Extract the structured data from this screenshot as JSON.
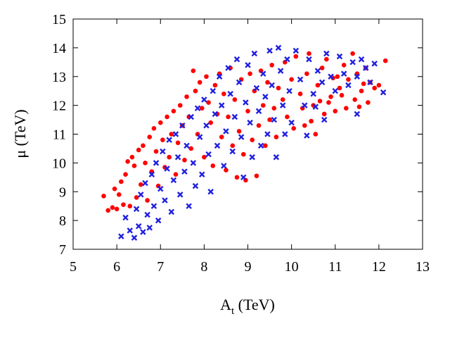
{
  "chart_data": {
    "type": "scatter",
    "title": "",
    "xlabel": {
      "main": "A",
      "sub": "t",
      "unit": " (TeV)"
    },
    "ylabel": "μ (TeV)",
    "xlim": [
      5,
      13
    ],
    "ylim": [
      7,
      15
    ],
    "x_ticks": [
      5,
      6,
      7,
      8,
      9,
      10,
      11,
      12,
      13
    ],
    "y_ticks": [
      7,
      8,
      9,
      10,
      11,
      12,
      13,
      14,
      15
    ],
    "grid": false,
    "legend": "none",
    "series": [
      {
        "marker": "filled-circle",
        "color": "#ff0000",
        "points": [
          [
            5.7,
            8.85
          ],
          [
            5.8,
            8.35
          ],
          [
            5.9,
            8.45
          ],
          [
            5.95,
            9.1
          ],
          [
            6.0,
            8.4
          ],
          [
            6.05,
            8.9
          ],
          [
            6.1,
            9.35
          ],
          [
            6.15,
            8.55
          ],
          [
            6.2,
            9.6
          ],
          [
            6.25,
            10.05
          ],
          [
            6.3,
            8.5
          ],
          [
            6.35,
            10.2
          ],
          [
            6.4,
            9.9
          ],
          [
            6.45,
            8.8
          ],
          [
            6.5,
            10.45
          ],
          [
            6.55,
            9.25
          ],
          [
            6.6,
            10.6
          ],
          [
            6.65,
            10.0
          ],
          [
            6.7,
            8.7
          ],
          [
            6.75,
            10.9
          ],
          [
            6.8,
            9.7
          ],
          [
            6.85,
            11.2
          ],
          [
            6.9,
            10.4
          ],
          [
            6.95,
            9.2
          ],
          [
            7.0,
            11.4
          ],
          [
            7.05,
            10.8
          ],
          [
            7.1,
            9.85
          ],
          [
            7.15,
            11.6
          ],
          [
            7.2,
            10.2
          ],
          [
            7.25,
            11.0
          ],
          [
            7.3,
            11.8
          ],
          [
            7.35,
            9.6
          ],
          [
            7.4,
            10.7
          ],
          [
            7.45,
            12.0
          ],
          [
            7.5,
            11.3
          ],
          [
            7.55,
            10.1
          ],
          [
            7.6,
            12.3
          ],
          [
            7.65,
            11.6
          ],
          [
            7.7,
            10.5
          ],
          [
            7.75,
            13.2
          ],
          [
            7.8,
            12.5
          ],
          [
            7.85,
            11.0
          ],
          [
            7.9,
            12.8
          ],
          [
            7.95,
            11.9
          ],
          [
            8.0,
            10.2
          ],
          [
            8.05,
            13.0
          ],
          [
            8.1,
            12.1
          ],
          [
            8.15,
            11.4
          ],
          [
            8.2,
            9.9
          ],
          [
            8.25,
            12.7
          ],
          [
            8.3,
            11.7
          ],
          [
            8.35,
            13.1
          ],
          [
            8.4,
            10.9
          ],
          [
            8.45,
            12.4
          ],
          [
            8.5,
            9.75
          ],
          [
            8.55,
            11.6
          ],
          [
            8.6,
            13.3
          ],
          [
            8.65,
            10.6
          ],
          [
            8.7,
            12.2
          ],
          [
            8.75,
            9.5
          ],
          [
            8.8,
            11.1
          ],
          [
            8.85,
            12.9
          ],
          [
            8.9,
            10.3
          ],
          [
            8.95,
            9.4
          ],
          [
            9.0,
            11.8
          ],
          [
            9.05,
            13.1
          ],
          [
            9.1,
            10.8
          ],
          [
            9.15,
            12.5
          ],
          [
            9.2,
            9.55
          ],
          [
            9.25,
            11.3
          ],
          [
            9.3,
            13.2
          ],
          [
            9.35,
            12.0
          ],
          [
            9.4,
            10.6
          ],
          [
            9.45,
            12.8
          ],
          [
            9.5,
            11.5
          ],
          [
            9.55,
            13.4
          ],
          [
            9.6,
            11.9
          ],
          [
            9.65,
            10.9
          ],
          [
            9.7,
            12.6
          ],
          [
            9.8,
            12.2
          ],
          [
            9.85,
            13.5
          ],
          [
            9.9,
            11.6
          ],
          [
            10.0,
            12.9
          ],
          [
            10.05,
            11.2
          ],
          [
            10.1,
            13.7
          ],
          [
            10.2,
            12.4
          ],
          [
            10.3,
            11.3
          ],
          [
            10.35,
            13.1
          ],
          [
            10.4,
            13.8
          ],
          [
            10.5,
            12.0
          ],
          [
            10.55,
            11.0
          ],
          [
            10.6,
            12.7
          ],
          [
            10.7,
            13.3
          ],
          [
            10.75,
            11.7
          ],
          [
            10.8,
            13.6
          ],
          [
            10.9,
            12.3
          ],
          [
            11.0,
            11.8
          ],
          [
            11.05,
            13.0
          ],
          [
            11.1,
            12.6
          ],
          [
            11.2,
            13.4
          ],
          [
            11.25,
            11.9
          ],
          [
            11.3,
            12.9
          ],
          [
            11.4,
            13.8
          ],
          [
            11.45,
            12.2
          ],
          [
            11.5,
            13.1
          ],
          [
            11.6,
            12.5
          ],
          [
            11.7,
            13.3
          ],
          [
            11.75,
            12.1
          ],
          [
            11.8,
            12.8
          ],
          [
            11.9,
            12.6
          ],
          [
            12.0,
            12.7
          ],
          [
            12.15,
            13.55
          ],
          [
            10.85,
            12.1
          ],
          [
            10.95,
            12.95
          ],
          [
            11.15,
            12.35
          ],
          [
            11.55,
            11.95
          ],
          [
            11.65,
            12.75
          ],
          [
            10.45,
            11.45
          ],
          [
            10.25,
            11.9
          ],
          [
            10.65,
            12.15
          ]
        ]
      },
      {
        "marker": "cross-x",
        "color": "#2020e0",
        "points": [
          [
            6.1,
            7.45
          ],
          [
            6.2,
            8.1
          ],
          [
            6.3,
            7.65
          ],
          [
            6.4,
            7.4
          ],
          [
            6.45,
            8.4
          ],
          [
            6.5,
            7.8
          ],
          [
            6.55,
            8.9
          ],
          [
            6.6,
            7.6
          ],
          [
            6.65,
            9.3
          ],
          [
            6.7,
            8.2
          ],
          [
            6.75,
            7.75
          ],
          [
            6.8,
            9.6
          ],
          [
            6.85,
            8.5
          ],
          [
            6.9,
            10.0
          ],
          [
            6.95,
            8.0
          ],
          [
            7.0,
            9.1
          ],
          [
            7.05,
            10.4
          ],
          [
            7.1,
            8.7
          ],
          [
            7.15,
            9.8
          ],
          [
            7.2,
            10.8
          ],
          [
            7.25,
            8.3
          ],
          [
            7.3,
            9.4
          ],
          [
            7.35,
            11.0
          ],
          [
            7.4,
            10.2
          ],
          [
            7.45,
            8.9
          ],
          [
            7.5,
            11.3
          ],
          [
            7.55,
            9.7
          ],
          [
            7.6,
            10.6
          ],
          [
            7.65,
            8.5
          ],
          [
            7.7,
            11.6
          ],
          [
            7.75,
            10.0
          ],
          [
            7.8,
            9.2
          ],
          [
            7.85,
            11.9
          ],
          [
            7.9,
            10.9
          ],
          [
            7.95,
            9.6
          ],
          [
            8.0,
            12.2
          ],
          [
            8.05,
            11.3
          ],
          [
            8.1,
            10.3
          ],
          [
            8.15,
            9.0
          ],
          [
            8.2,
            12.5
          ],
          [
            8.25,
            11.7
          ],
          [
            8.3,
            10.6
          ],
          [
            8.35,
            13.0
          ],
          [
            8.4,
            12.0
          ],
          [
            8.45,
            9.9
          ],
          [
            8.5,
            11.1
          ],
          [
            8.55,
            13.3
          ],
          [
            8.6,
            12.4
          ],
          [
            8.65,
            10.4
          ],
          [
            8.7,
            11.6
          ],
          [
            8.75,
            13.6
          ],
          [
            8.8,
            12.8
          ],
          [
            8.85,
            10.9
          ],
          [
            8.9,
            9.5
          ],
          [
            8.95,
            12.1
          ],
          [
            9.0,
            13.4
          ],
          [
            9.05,
            11.4
          ],
          [
            9.1,
            10.2
          ],
          [
            9.15,
            13.8
          ],
          [
            9.2,
            12.6
          ],
          [
            9.25,
            11.8
          ],
          [
            9.3,
            10.6
          ],
          [
            9.35,
            13.1
          ],
          [
            9.4,
            12.3
          ],
          [
            9.45,
            11.0
          ],
          [
            9.5,
            13.9
          ],
          [
            9.55,
            12.7
          ],
          [
            9.6,
            11.5
          ],
          [
            9.65,
            10.2
          ],
          [
            9.7,
            14.0
          ],
          [
            9.75,
            13.2
          ],
          [
            9.8,
            12.0
          ],
          [
            9.85,
            11.0
          ],
          [
            9.9,
            13.6
          ],
          [
            9.95,
            12.5
          ],
          [
            10.0,
            11.4
          ],
          [
            10.1,
            13.9
          ],
          [
            10.2,
            12.9
          ],
          [
            10.3,
            12.0
          ],
          [
            10.4,
            13.6
          ],
          [
            10.5,
            12.4
          ],
          [
            10.6,
            13.2
          ],
          [
            10.7,
            12.8
          ],
          [
            10.8,
            13.8
          ],
          [
            10.9,
            13.0
          ],
          [
            11.0,
            12.5
          ],
          [
            11.1,
            13.7
          ],
          [
            11.2,
            13.1
          ],
          [
            11.3,
            12.7
          ],
          [
            11.4,
            13.5
          ],
          [
            11.5,
            13.0
          ],
          [
            11.6,
            13.6
          ],
          [
            11.7,
            13.3
          ],
          [
            11.8,
            12.8
          ],
          [
            11.5,
            11.7
          ],
          [
            11.9,
            13.45
          ],
          [
            12.1,
            12.45
          ],
          [
            10.75,
            11.5
          ],
          [
            10.55,
            11.95
          ],
          [
            10.35,
            10.95
          ]
        ]
      }
    ]
  }
}
